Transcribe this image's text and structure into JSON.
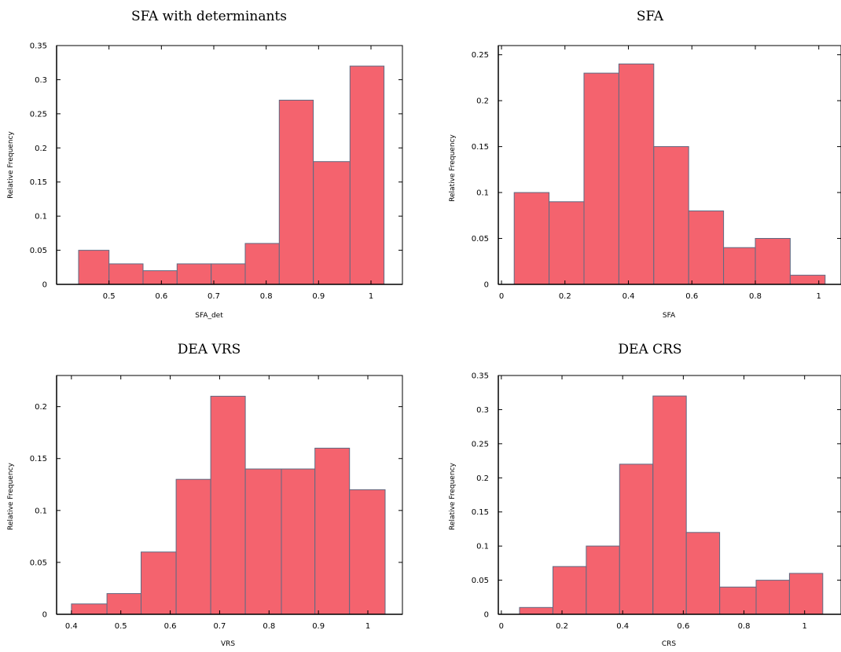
{
  "chart_data": [
    {
      "type": "bar",
      "title": "SFA with determinants",
      "xlabel": "SFA_det",
      "ylabel": "Relative Frequency",
      "xlim": [
        0.4,
        1.06
      ],
      "ylim": [
        0,
        0.35
      ],
      "xticks": [
        "0.5",
        "0.6",
        "0.7",
        "0.8",
        "0.9",
        "1"
      ],
      "yticks": [
        "0",
        "0.05",
        "0.1",
        "0.15",
        "0.2",
        "0.25",
        "0.3",
        "0.35"
      ],
      "bins": [
        [
          0.442,
          0.5
        ],
        [
          0.5,
          0.565
        ],
        [
          0.565,
          0.63
        ],
        [
          0.63,
          0.695
        ],
        [
          0.695,
          0.76
        ],
        [
          0.76,
          0.825
        ],
        [
          0.825,
          0.89
        ],
        [
          0.89,
          0.96
        ],
        [
          0.96,
          1.025
        ]
      ],
      "values": [
        0.05,
        0.03,
        0.02,
        0.03,
        0.03,
        0.06,
        0.27,
        0.18,
        0.32
      ]
    },
    {
      "type": "bar",
      "title": "SFA",
      "xlabel": "SFA",
      "ylabel": "Relative Frequency",
      "xlim": [
        -0.01,
        1.07
      ],
      "ylim": [
        0,
        0.26
      ],
      "xticks": [
        "0",
        "0.2",
        "0.4",
        "0.6",
        "0.8",
        "1"
      ],
      "yticks": [
        "0",
        "0.05",
        "0.1",
        "0.15",
        "0.2",
        "0.25"
      ],
      "bins": [
        [
          0.04,
          0.15
        ],
        [
          0.15,
          0.26
        ],
        [
          0.26,
          0.37
        ],
        [
          0.37,
          0.48
        ],
        [
          0.48,
          0.59
        ],
        [
          0.59,
          0.7
        ],
        [
          0.7,
          0.8
        ],
        [
          0.8,
          0.91
        ],
        [
          0.91,
          1.02
        ]
      ],
      "values": [
        0.1,
        0.09,
        0.23,
        0.24,
        0.15,
        0.08,
        0.04,
        0.05,
        0.01
      ]
    },
    {
      "type": "bar",
      "title": "DEA VRS",
      "xlabel": "VRS",
      "ylabel": "Relative Frequency",
      "xlim": [
        0.37,
        1.07
      ],
      "ylim": [
        0,
        0.23
      ],
      "xticks": [
        "0.4",
        "0.5",
        "0.6",
        "0.7",
        "0.8",
        "0.9",
        "1"
      ],
      "yticks": [
        "0",
        "0.05",
        "0.1",
        "0.15",
        "0.2"
      ],
      "bins": [
        [
          0.4,
          0.472
        ],
        [
          0.472,
          0.541
        ],
        [
          0.541,
          0.612
        ],
        [
          0.612,
          0.682
        ],
        [
          0.682,
          0.752
        ],
        [
          0.752,
          0.825
        ],
        [
          0.825,
          0.893
        ],
        [
          0.893,
          0.963
        ],
        [
          0.963,
          1.035
        ]
      ],
      "values": [
        0.01,
        0.02,
        0.06,
        0.13,
        0.21,
        0.14,
        0.14,
        0.16,
        0.12
      ]
    },
    {
      "type": "bar",
      "title": "DEA CRS",
      "xlabel": "CRS",
      "ylabel": "Relative Frequency",
      "xlim": [
        -0.01,
        1.12
      ],
      "ylim": [
        0,
        0.35
      ],
      "xticks": [
        "0",
        "0.2",
        "0.4",
        "0.6",
        "0.8",
        "1"
      ],
      "yticks": [
        "0",
        "0.05",
        "0.1",
        "0.15",
        "0.2",
        "0.25",
        "0.3",
        "0.35"
      ],
      "bins": [
        [
          0.06,
          0.17
        ],
        [
          0.17,
          0.28
        ],
        [
          0.28,
          0.39
        ],
        [
          0.39,
          0.5
        ],
        [
          0.5,
          0.61
        ],
        [
          0.61,
          0.72
        ],
        [
          0.72,
          0.84
        ],
        [
          0.84,
          0.95
        ],
        [
          0.95,
          1.06
        ]
      ],
      "values": [
        0.01,
        0.07,
        0.1,
        0.22,
        0.32,
        0.12,
        0.04,
        0.05,
        0.06
      ]
    }
  ]
}
